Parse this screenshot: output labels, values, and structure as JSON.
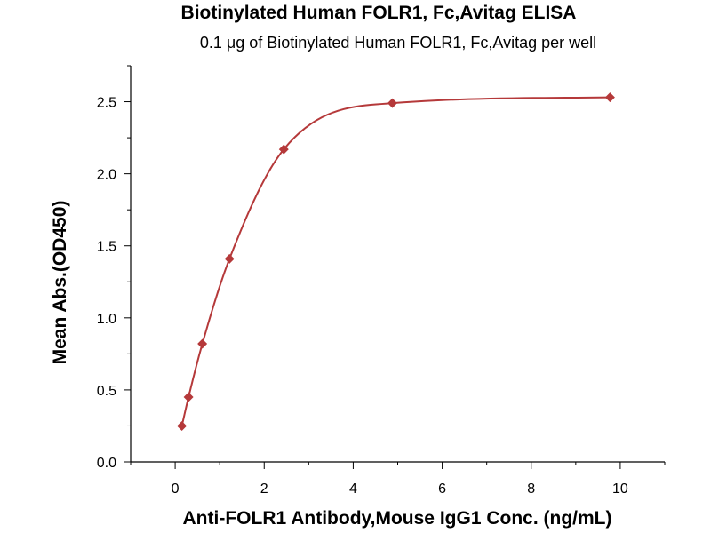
{
  "chart_data": {
    "type": "scatter",
    "title": "Biotinylated Human FOLR1, Fc,Avitag ELISA",
    "subtitle": "0.1 μg of Biotinylated Human FOLR1, Fc,Avitag per well",
    "xlabel": "Anti-FOLR1 Antibody,Mouse IgG1 Conc. (ng/mL)",
    "ylabel": "Mean Abs.(OD450)",
    "xlim": [
      -1,
      11
    ],
    "ylim": [
      0,
      2.75
    ],
    "x_ticks": [
      0,
      2,
      4,
      6,
      8,
      10
    ],
    "x_tick_labels": [
      "0",
      "2",
      "4",
      "6",
      "8",
      "10"
    ],
    "y_ticks": [
      0,
      0.5,
      1.0,
      1.5,
      2.0,
      2.5
    ],
    "y_tick_labels": [
      "0.0",
      "0.5",
      "1.0",
      "1.5",
      "2.0",
      "2.5"
    ],
    "grid": false,
    "series": [
      {
        "marker": "diamond",
        "color": "#b5393a",
        "x": [
          0.15,
          0.3,
          0.61,
          1.22,
          2.44,
          4.88,
          9.77
        ],
        "y": [
          0.25,
          0.45,
          0.82,
          1.41,
          2.17,
          2.49,
          2.53
        ]
      }
    ],
    "fit_curve": {
      "color": "#b5393a",
      "type": "sigmoid-fit"
    }
  }
}
